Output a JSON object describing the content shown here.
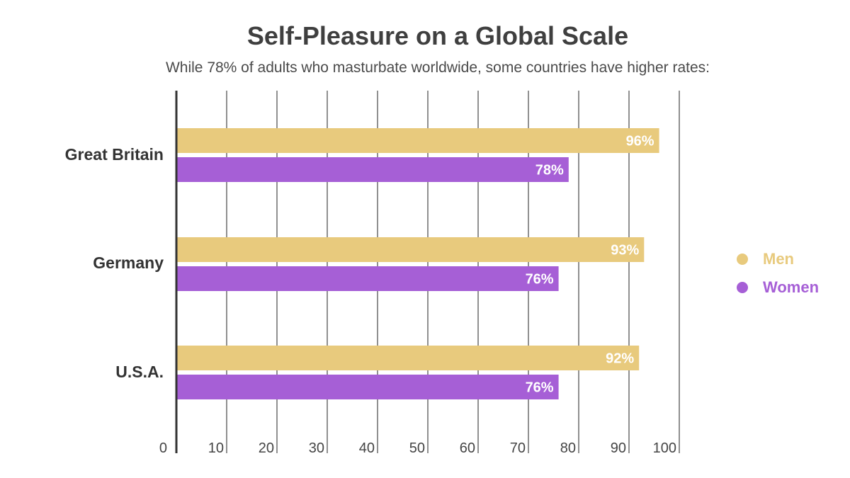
{
  "colors": {
    "men": "#e8ca7d",
    "women": "#a65fd6",
    "grid": "#6b6b6b",
    "axis": "#333333",
    "label_text": "#ffffff",
    "category_text": "#333333"
  },
  "chart_data": {
    "type": "bar",
    "orientation": "horizontal",
    "title": "Self-Pleasure on a Global Scale",
    "subtitle": "While 78% of adults who masturbate worldwide, some countries have higher rates:",
    "categories": [
      "Great Britain",
      "Germany",
      "U.S.A."
    ],
    "series": [
      {
        "name": "Men",
        "values": [
          96,
          93,
          92
        ],
        "labels": [
          "96%",
          "93%",
          "92%"
        ]
      },
      {
        "name": "Women",
        "values": [
          78,
          76,
          76
        ],
        "labels": [
          "78%",
          "76%",
          "76%"
        ]
      }
    ],
    "xlim": [
      0,
      100
    ],
    "xticks": [
      0,
      10,
      20,
      30,
      40,
      50,
      60,
      70,
      80,
      90,
      100
    ],
    "xtick_labels": [
      "0",
      "10",
      "20",
      "30",
      "40",
      "50",
      "60",
      "70",
      "80",
      "90",
      "100"
    ],
    "grid": true,
    "legend_position": "right"
  }
}
